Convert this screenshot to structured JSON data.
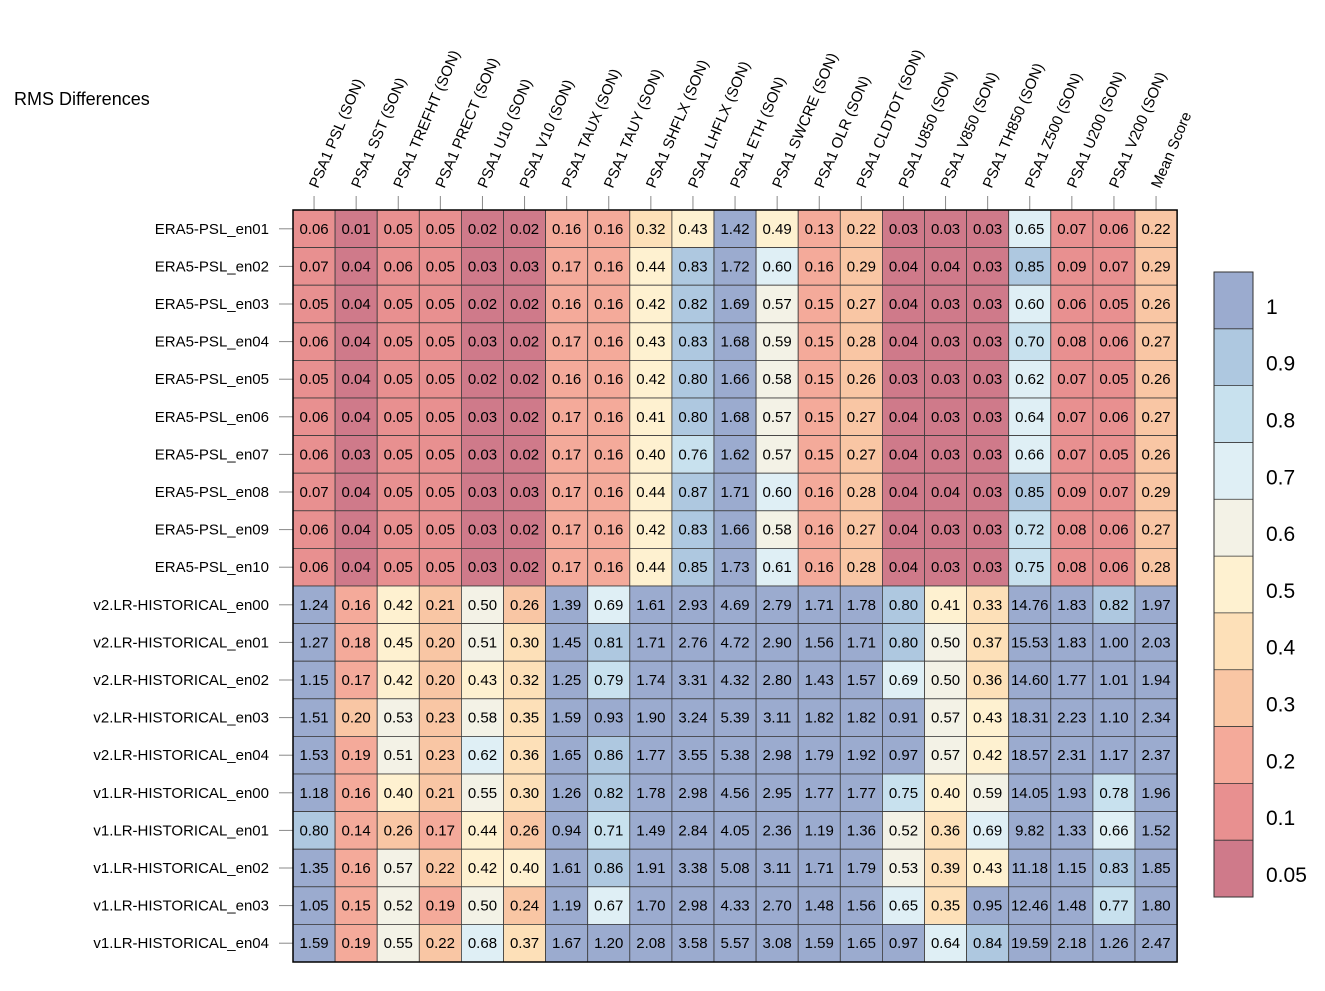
{
  "chart_data": {
    "type": "heatmap",
    "title": "RMS Differences",
    "columns": [
      "PSA1 PSL (SON)",
      "PSA1 SST (SON)",
      "PSA1 TREFHT (SON)",
      "PSA1 PRECT (SON)",
      "PSA1 U10 (SON)",
      "PSA1 V10 (SON)",
      "PSA1 TAUX (SON)",
      "PSA1 TAUY (SON)",
      "PSA1 SHFLX (SON)",
      "PSA1 LHFLX (SON)",
      "PSA1 ETH (SON)",
      "PSA1 SWCRE (SON)",
      "PSA1 OLR (SON)",
      "PSA1 CLDTOT (SON)",
      "PSA1 U850 (SON)",
      "PSA1 V850 (SON)",
      "PSA1 TH850 (SON)",
      "PSA1 Z500 (SON)",
      "PSA1 U200 (SON)",
      "PSA1 V200 (SON)",
      "Mean Score"
    ],
    "rows": [
      "ERA5-PSL_en01",
      "ERA5-PSL_en02",
      "ERA5-PSL_en03",
      "ERA5-PSL_en04",
      "ERA5-PSL_en05",
      "ERA5-PSL_en06",
      "ERA5-PSL_en07",
      "ERA5-PSL_en08",
      "ERA5-PSL_en09",
      "ERA5-PSL_en10",
      "v2.LR-HISTORICAL_en00",
      "v2.LR-HISTORICAL_en01",
      "v2.LR-HISTORICAL_en02",
      "v2.LR-HISTORICAL_en03",
      "v2.LR-HISTORICAL_en04",
      "v1.LR-HISTORICAL_en00",
      "v1.LR-HISTORICAL_en01",
      "v1.LR-HISTORICAL_en02",
      "v1.LR-HISTORICAL_en03",
      "v1.LR-HISTORICAL_en04"
    ],
    "values": [
      [
        0.06,
        0.01,
        0.05,
        0.05,
        0.02,
        0.02,
        0.16,
        0.16,
        0.32,
        0.43,
        1.42,
        0.49,
        0.13,
        0.22,
        0.03,
        0.03,
        0.03,
        0.65,
        0.07,
        0.06,
        0.22
      ],
      [
        0.07,
        0.04,
        0.06,
        0.05,
        0.03,
        0.03,
        0.17,
        0.16,
        0.44,
        0.83,
        1.72,
        0.6,
        0.16,
        0.29,
        0.04,
        0.04,
        0.03,
        0.85,
        0.09,
        0.07,
        0.29
      ],
      [
        0.05,
        0.04,
        0.05,
        0.05,
        0.02,
        0.02,
        0.16,
        0.16,
        0.42,
        0.82,
        1.69,
        0.57,
        0.15,
        0.27,
        0.04,
        0.03,
        0.03,
        0.6,
        0.06,
        0.05,
        0.26
      ],
      [
        0.06,
        0.04,
        0.05,
        0.05,
        0.03,
        0.02,
        0.17,
        0.16,
        0.43,
        0.83,
        1.68,
        0.59,
        0.15,
        0.28,
        0.04,
        0.03,
        0.03,
        0.7,
        0.08,
        0.06,
        0.27
      ],
      [
        0.05,
        0.04,
        0.05,
        0.05,
        0.02,
        0.02,
        0.16,
        0.16,
        0.42,
        0.8,
        1.66,
        0.58,
        0.15,
        0.26,
        0.03,
        0.03,
        0.03,
        0.62,
        0.07,
        0.05,
        0.26
      ],
      [
        0.06,
        0.04,
        0.05,
        0.05,
        0.03,
        0.02,
        0.17,
        0.16,
        0.41,
        0.8,
        1.68,
        0.57,
        0.15,
        0.27,
        0.04,
        0.03,
        0.03,
        0.64,
        0.07,
        0.06,
        0.27
      ],
      [
        0.06,
        0.03,
        0.05,
        0.05,
        0.03,
        0.02,
        0.17,
        0.16,
        0.4,
        0.76,
        1.62,
        0.57,
        0.15,
        0.27,
        0.04,
        0.03,
        0.03,
        0.66,
        0.07,
        0.05,
        0.26
      ],
      [
        0.07,
        0.04,
        0.05,
        0.05,
        0.03,
        0.03,
        0.17,
        0.16,
        0.44,
        0.87,
        1.71,
        0.6,
        0.16,
        0.28,
        0.04,
        0.04,
        0.03,
        0.85,
        0.09,
        0.07,
        0.29
      ],
      [
        0.06,
        0.04,
        0.05,
        0.05,
        0.03,
        0.02,
        0.17,
        0.16,
        0.42,
        0.83,
        1.66,
        0.58,
        0.16,
        0.27,
        0.04,
        0.03,
        0.03,
        0.72,
        0.08,
        0.06,
        0.27
      ],
      [
        0.06,
        0.04,
        0.05,
        0.05,
        0.03,
        0.02,
        0.17,
        0.16,
        0.44,
        0.85,
        1.73,
        0.61,
        0.16,
        0.28,
        0.04,
        0.03,
        0.03,
        0.75,
        0.08,
        0.06,
        0.28
      ],
      [
        1.24,
        0.16,
        0.42,
        0.21,
        0.5,
        0.26,
        1.39,
        0.69,
        1.61,
        2.93,
        4.69,
        2.79,
        1.71,
        1.78,
        0.8,
        0.41,
        0.33,
        14.76,
        1.83,
        0.82,
        1.97
      ],
      [
        1.27,
        0.18,
        0.45,
        0.2,
        0.51,
        0.3,
        1.45,
        0.81,
        1.71,
        2.76,
        4.72,
        2.9,
        1.56,
        1.71,
        0.8,
        0.5,
        0.37,
        15.53,
        1.83,
        1.0,
        2.03
      ],
      [
        1.15,
        0.17,
        0.42,
        0.2,
        0.43,
        0.32,
        1.25,
        0.79,
        1.74,
        3.31,
        4.32,
        2.8,
        1.43,
        1.57,
        0.69,
        0.5,
        0.36,
        14.6,
        1.77,
        1.01,
        1.94
      ],
      [
        1.51,
        0.2,
        0.53,
        0.23,
        0.58,
        0.35,
        1.59,
        0.93,
        1.9,
        3.24,
        5.39,
        3.11,
        1.82,
        1.82,
        0.91,
        0.57,
        0.43,
        18.31,
        2.23,
        1.1,
        2.34
      ],
      [
        1.53,
        0.19,
        0.51,
        0.23,
        0.62,
        0.36,
        1.65,
        0.86,
        1.77,
        3.55,
        5.38,
        2.98,
        1.79,
        1.92,
        0.97,
        0.57,
        0.42,
        18.57,
        2.31,
        1.17,
        2.37
      ],
      [
        1.18,
        0.16,
        0.4,
        0.21,
        0.55,
        0.3,
        1.26,
        0.82,
        1.78,
        2.98,
        4.56,
        2.95,
        1.77,
        1.77,
        0.75,
        0.4,
        0.59,
        14.05,
        1.93,
        0.78,
        1.96
      ],
      [
        0.8,
        0.14,
        0.26,
        0.17,
        0.44,
        0.26,
        0.94,
        0.71,
        1.49,
        2.84,
        4.05,
        2.36,
        1.19,
        1.36,
        0.52,
        0.36,
        0.69,
        9.82,
        1.33,
        0.66,
        1.52
      ],
      [
        1.35,
        0.16,
        0.57,
        0.22,
        0.42,
        0.4,
        1.61,
        0.86,
        1.91,
        3.38,
        5.08,
        3.11,
        1.71,
        1.79,
        0.53,
        0.39,
        0.43,
        11.18,
        1.15,
        0.83,
        1.85
      ],
      [
        1.05,
        0.15,
        0.52,
        0.19,
        0.5,
        0.24,
        1.19,
        0.67,
        1.7,
        2.98,
        4.33,
        2.7,
        1.48,
        1.56,
        0.65,
        0.35,
        0.95,
        12.46,
        1.48,
        0.77,
        1.8
      ],
      [
        1.59,
        0.19,
        0.55,
        0.22,
        0.68,
        0.37,
        1.67,
        1.2,
        2.08,
        3.58,
        5.57,
        3.08,
        1.59,
        1.65,
        0.97,
        0.64,
        0.84,
        19.59,
        2.18,
        1.26,
        2.47
      ]
    ],
    "value_format": "fixed-2",
    "colorbar": {
      "bounds": [
        0.05,
        0.1,
        0.2,
        0.3,
        0.4,
        0.5,
        0.6,
        0.7,
        0.8,
        0.9,
        1
      ],
      "colors": [
        "#cf7a8a",
        "#e89090",
        "#f4aa9a",
        "#f9c6a4",
        "#fde0b8",
        "#fef1d0",
        "#f3f2e6",
        "#dfeff5",
        "#c8e1ee",
        "#aec8e0",
        "#9babcf"
      ],
      "tick_labels": [
        "1",
        "0.9",
        "0.8",
        "0.7",
        "0.6",
        "0.5",
        "0.4",
        "0.3",
        "0.2",
        "0.1",
        "0.05"
      ]
    }
  }
}
